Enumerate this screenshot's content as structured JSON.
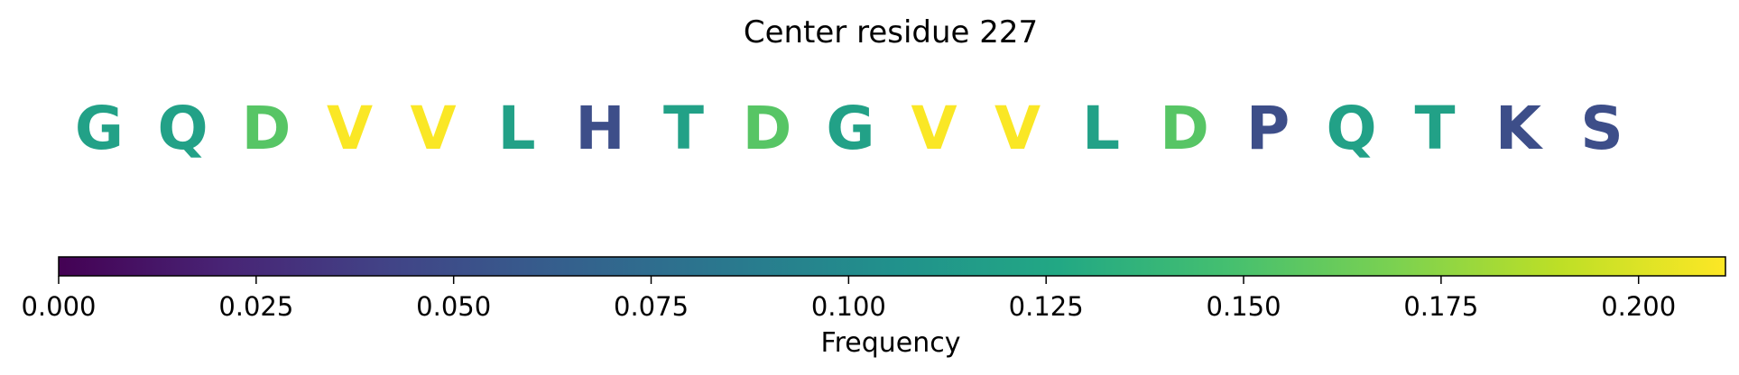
{
  "chart_data": {
    "type": "heatmap",
    "title": "Center residue 227",
    "residues": [
      "G",
      "Q",
      "D",
      "V",
      "V",
      "L",
      "H",
      "T",
      "D",
      "G",
      "V",
      "V",
      "L",
      "D",
      "P",
      "Q",
      "T",
      "K",
      "S"
    ],
    "frequencies": [
      0.12,
      0.12,
      0.155,
      0.21,
      0.21,
      0.12,
      0.05,
      0.12,
      0.155,
      0.12,
      0.21,
      0.21,
      0.12,
      0.155,
      0.05,
      0.12,
      0.12,
      0.05,
      0.05
    ],
    "colorbar": {
      "label": "Frequency",
      "range": [
        0,
        0.211
      ],
      "ticks": [
        0.0,
        0.025,
        0.05,
        0.075,
        0.1,
        0.125,
        0.15,
        0.175,
        0.2
      ],
      "tick_labels": [
        "0.000",
        "0.025",
        "0.050",
        "0.075",
        "0.100",
        "0.125",
        "0.150",
        "0.175",
        "0.200"
      ],
      "colormap": "viridis"
    }
  }
}
